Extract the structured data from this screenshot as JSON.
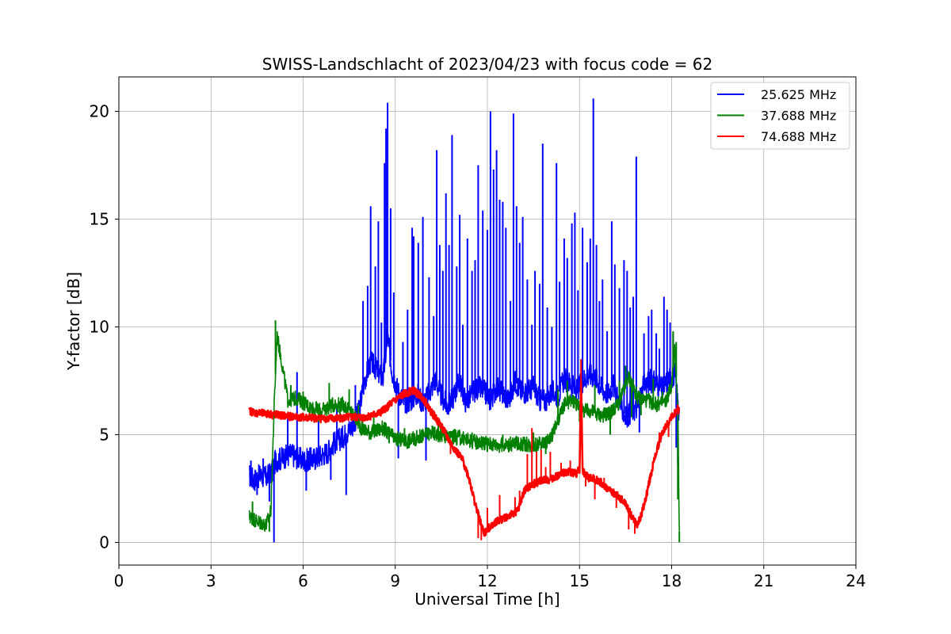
{
  "chart_data": {
    "type": "line",
    "title": "SWISS-Landschlacht of 2023/04/23 with focus code = 62",
    "xlabel": "Universal Time [h]",
    "ylabel": "Y-factor [dB]",
    "xlim": [
      0,
      24
    ],
    "ylim": [
      -1.05,
      21.6
    ],
    "xticks": [
      0,
      3,
      6,
      9,
      12,
      15,
      18,
      21,
      24
    ],
    "yticks": [
      0,
      5,
      10,
      15,
      20
    ],
    "grid": true,
    "legend_position": "top-right",
    "series": [
      {
        "name": "25.625 MHz",
        "color": "#0000ff",
        "x": [
          4.25,
          4.4,
          4.6,
          4.8,
          5.0,
          5.1,
          5.3,
          5.6,
          6.0,
          6.4,
          6.8,
          7.0,
          7.3,
          7.6,
          7.8,
          8.0,
          8.2,
          8.4,
          8.6,
          8.75,
          8.9,
          9.1,
          9.3,
          9.5,
          9.7,
          9.9,
          10.1,
          10.3,
          10.5,
          10.7,
          10.9,
          11.1,
          11.3,
          11.5,
          11.7,
          11.9,
          12.1,
          12.3,
          12.5,
          12.7,
          12.9,
          13.1,
          13.3,
          13.5,
          13.7,
          13.9,
          14.1,
          14.3,
          14.5,
          14.7,
          14.9,
          15.1,
          15.3,
          15.5,
          15.7,
          15.9,
          16.1,
          16.3,
          16.5,
          16.7,
          16.9,
          17.1,
          17.3,
          17.5,
          17.7,
          17.9,
          18.1,
          18.25
        ],
        "y": [
          3.1,
          2.9,
          3.1,
          3.0,
          3.3,
          3.8,
          3.9,
          4.1,
          3.8,
          3.9,
          4.2,
          4.6,
          4.9,
          5.4,
          6.0,
          7.5,
          8.4,
          8.0,
          7.6,
          9.5,
          7.9,
          7.0,
          6.5,
          6.6,
          6.9,
          6.5,
          6.9,
          7.6,
          6.8,
          6.3,
          6.8,
          7.5,
          6.5,
          6.9,
          7.2,
          7.0,
          6.6,
          7.2,
          6.9,
          6.6,
          7.5,
          7.0,
          7.0,
          7.2,
          6.6,
          6.6,
          7.0,
          6.8,
          7.6,
          7.4,
          7.0,
          7.5,
          7.8,
          7.7,
          7.2,
          6.9,
          7.3,
          6.5,
          5.8,
          6.1,
          6.3,
          7.3,
          7.5,
          7.4,
          7.1,
          7.6,
          7.8,
          6.0
        ],
        "spikes": [
          [
            4.3,
            3.8
          ],
          [
            4.5,
            2.2
          ],
          [
            4.7,
            3.9
          ],
          [
            4.9,
            1.9
          ],
          [
            5.05,
            0.0
          ],
          [
            5.5,
            6.0
          ],
          [
            5.8,
            7.9
          ],
          [
            6.1,
            2.4
          ],
          [
            6.5,
            5.6
          ],
          [
            6.9,
            2.9
          ],
          [
            7.1,
            6.3
          ],
          [
            7.4,
            2.2
          ],
          [
            7.7,
            7.3
          ],
          [
            7.95,
            11.2
          ],
          [
            8.1,
            11.9
          ],
          [
            8.2,
            15.6
          ],
          [
            8.35,
            12.8
          ],
          [
            8.45,
            14.9
          ],
          [
            8.55,
            10.2
          ],
          [
            8.65,
            17.6
          ],
          [
            8.7,
            19.2
          ],
          [
            8.75,
            20.4
          ],
          [
            8.85,
            15.5
          ],
          [
            8.95,
            11.6
          ],
          [
            9.1,
            3.9
          ],
          [
            9.25,
            9.3
          ],
          [
            9.4,
            10.8
          ],
          [
            9.55,
            14.6
          ],
          [
            9.6,
            14.2
          ],
          [
            9.75,
            13.9
          ],
          [
            9.9,
            15.1
          ],
          [
            10.0,
            3.8
          ],
          [
            10.1,
            12.3
          ],
          [
            10.25,
            10.5
          ],
          [
            10.35,
            18.2
          ],
          [
            10.45,
            13.8
          ],
          [
            10.55,
            12.6
          ],
          [
            10.65,
            16.2
          ],
          [
            10.75,
            13.8
          ],
          [
            10.85,
            18.9
          ],
          [
            11.0,
            12.8
          ],
          [
            11.1,
            15.2
          ],
          [
            11.2,
            10.1
          ],
          [
            11.35,
            14.1
          ],
          [
            11.5,
            12.6
          ],
          [
            11.6,
            13.1
          ],
          [
            11.7,
            17.5
          ],
          [
            11.85,
            15.4
          ],
          [
            12.0,
            14.5
          ],
          [
            12.1,
            20.0
          ],
          [
            12.2,
            17.3
          ],
          [
            12.3,
            18.2
          ],
          [
            12.4,
            15.9
          ],
          [
            12.5,
            15.8
          ],
          [
            12.6,
            14.6
          ],
          [
            12.75,
            11.2
          ],
          [
            12.85,
            19.9
          ],
          [
            12.95,
            15.6
          ],
          [
            13.05,
            13.9
          ],
          [
            13.15,
            15.1
          ],
          [
            13.3,
            12.2
          ],
          [
            13.45,
            10.1
          ],
          [
            13.55,
            12.6
          ],
          [
            13.7,
            12.0
          ],
          [
            13.8,
            18.5
          ],
          [
            13.95,
            10.9
          ],
          [
            14.1,
            10.0
          ],
          [
            14.25,
            17.6
          ],
          [
            14.35,
            12.1
          ],
          [
            14.5,
            14.1
          ],
          [
            14.6,
            13.2
          ],
          [
            14.75,
            14.8
          ],
          [
            14.85,
            15.3
          ],
          [
            14.95,
            11.7
          ],
          [
            15.1,
            14.6
          ],
          [
            15.25,
            13.0
          ],
          [
            15.35,
            14.1
          ],
          [
            15.45,
            20.6
          ],
          [
            15.55,
            13.8
          ],
          [
            15.65,
            11.2
          ],
          [
            15.75,
            12.2
          ],
          [
            15.9,
            9.8
          ],
          [
            16.05,
            14.9
          ],
          [
            16.15,
            12.9
          ],
          [
            16.3,
            11.8
          ],
          [
            16.45,
            13.1
          ],
          [
            16.55,
            12.6
          ],
          [
            16.65,
            10.9
          ],
          [
            16.75,
            11.4
          ],
          [
            16.85,
            17.9
          ],
          [
            16.95,
            5.1
          ],
          [
            17.1,
            9.7
          ],
          [
            17.25,
            10.5
          ],
          [
            17.35,
            10.8
          ],
          [
            17.5,
            9.7
          ],
          [
            17.6,
            9.0
          ],
          [
            17.75,
            11.4
          ],
          [
            17.85,
            10.8
          ],
          [
            17.95,
            10.2
          ],
          [
            18.05,
            9.7
          ],
          [
            18.15,
            4.4
          ],
          [
            18.2,
            3.6
          ]
        ]
      },
      {
        "name": "37.688 MHz",
        "color": "#008000",
        "x": [
          4.25,
          4.5,
          4.8,
          4.95,
          5.05,
          5.15,
          5.3,
          5.5,
          5.8,
          6.2,
          6.6,
          7.0,
          7.3,
          7.6,
          7.9,
          8.2,
          8.6,
          9.0,
          9.4,
          9.8,
          10.2,
          10.6,
          11.0,
          11.5,
          12.0,
          12.5,
          13.0,
          13.5,
          14.0,
          14.3,
          14.5,
          14.8,
          15.1,
          15.4,
          15.7,
          16.0,
          16.3,
          16.6,
          16.9,
          17.2,
          17.5,
          17.8,
          18.0,
          18.1,
          18.2,
          18.25
        ],
        "y": [
          1.2,
          1.0,
          0.8,
          1.5,
          6.0,
          9.6,
          8.4,
          6.6,
          6.7,
          6.3,
          6.1,
          6.4,
          6.4,
          6.0,
          5.3,
          5.1,
          5.3,
          4.8,
          4.7,
          4.9,
          5.1,
          4.9,
          4.9,
          4.7,
          4.6,
          4.5,
          4.6,
          4.5,
          4.7,
          5.6,
          6.4,
          6.6,
          6.1,
          6.1,
          5.9,
          6.0,
          6.5,
          7.7,
          6.7,
          6.6,
          6.4,
          6.5,
          7.3,
          8.9,
          6.5,
          0.5
        ],
        "spikes": [
          [
            4.35,
            1.9
          ],
          [
            4.6,
            0.6
          ],
          [
            4.9,
            0.5
          ],
          [
            5.1,
            10.3
          ],
          [
            5.2,
            9.4
          ],
          [
            5.6,
            7.3
          ],
          [
            6.0,
            7.0
          ],
          [
            6.5,
            5.6
          ],
          [
            6.85,
            7.4
          ],
          [
            7.2,
            5.7
          ],
          [
            7.5,
            7.1
          ],
          [
            7.8,
            6.4
          ],
          [
            8.3,
            5.8
          ],
          [
            8.8,
            4.6
          ],
          [
            9.3,
            5.3
          ],
          [
            9.9,
            4.7
          ],
          [
            10.4,
            5.5
          ],
          [
            11.0,
            4.5
          ],
          [
            11.5,
            5.1
          ],
          [
            12.0,
            4.2
          ],
          [
            12.5,
            5.0
          ],
          [
            13.0,
            4.3
          ],
          [
            13.5,
            5.1
          ],
          [
            13.9,
            4.1
          ],
          [
            14.3,
            7.1
          ],
          [
            14.6,
            7.5
          ],
          [
            15.0,
            5.6
          ],
          [
            15.5,
            7.3
          ],
          [
            16.0,
            5.0
          ],
          [
            16.3,
            7.5
          ],
          [
            16.5,
            8.2
          ],
          [
            16.7,
            5.8
          ],
          [
            17.0,
            5.9
          ],
          [
            17.4,
            7.6
          ],
          [
            17.7,
            7.0
          ],
          [
            18.05,
            9.8
          ],
          [
            18.15,
            9.3
          ],
          [
            18.2,
            2.0
          ],
          [
            18.25,
            0.0
          ]
        ]
      },
      {
        "name": "74.688 MHz",
        "color": "#ff0000",
        "x": [
          4.25,
          4.5,
          5.0,
          5.5,
          6.0,
          6.5,
          7.0,
          7.5,
          8.0,
          8.5,
          9.0,
          9.3,
          9.6,
          9.9,
          10.2,
          10.5,
          10.8,
          11.0,
          11.2,
          11.4,
          11.6,
          11.8,
          11.9,
          12.0,
          12.2,
          12.5,
          12.8,
          13.0,
          13.2,
          13.5,
          13.8,
          14.0,
          14.3,
          14.6,
          14.9,
          15.0,
          15.05,
          15.1,
          15.3,
          15.6,
          15.9,
          16.2,
          16.5,
          16.7,
          16.9,
          17.1,
          17.3,
          17.5,
          17.7,
          17.9,
          18.1,
          18.25
        ],
        "y": [
          6.1,
          6.0,
          5.95,
          5.85,
          5.8,
          5.75,
          5.75,
          5.8,
          5.8,
          6.0,
          6.6,
          6.9,
          7.05,
          6.7,
          6.0,
          5.4,
          4.6,
          4.2,
          3.8,
          3.0,
          1.8,
          0.8,
          0.4,
          0.6,
          0.9,
          1.1,
          1.3,
          1.5,
          2.4,
          2.7,
          2.9,
          2.9,
          3.1,
          3.3,
          3.2,
          3.4,
          7.5,
          3.3,
          3.0,
          2.9,
          2.5,
          2.2,
          1.8,
          1.2,
          0.8,
          1.7,
          3.0,
          4.2,
          5.1,
          5.6,
          6.0,
          6.2
        ],
        "spikes": [
          [
            4.3,
            6.2
          ],
          [
            5.0,
            5.7
          ],
          [
            6.2,
            6.0
          ],
          [
            7.4,
            6.0
          ],
          [
            8.6,
            6.3
          ],
          [
            9.5,
            7.2
          ],
          [
            10.4,
            5.8
          ],
          [
            10.8,
            4.1
          ],
          [
            11.5,
            2.6
          ],
          [
            11.7,
            0.2
          ],
          [
            11.8,
            0.1
          ],
          [
            12.0,
            1.6
          ],
          [
            12.4,
            2.2
          ],
          [
            12.9,
            2.1
          ],
          [
            13.05,
            2.4
          ],
          [
            13.3,
            4.1
          ],
          [
            13.45,
            5.3
          ],
          [
            13.6,
            4.2
          ],
          [
            13.75,
            4.3
          ],
          [
            13.9,
            3.5
          ],
          [
            14.05,
            4.2
          ],
          [
            14.4,
            3.7
          ],
          [
            14.7,
            3.8
          ],
          [
            15.05,
            8.5
          ],
          [
            15.2,
            2.6
          ],
          [
            15.5,
            2.0
          ],
          [
            15.8,
            3.0
          ],
          [
            16.2,
            1.6
          ],
          [
            16.6,
            0.6
          ],
          [
            16.8,
            0.4
          ],
          [
            17.0,
            1.1
          ],
          [
            17.6,
            5.1
          ],
          [
            17.9,
            4.9
          ],
          [
            18.2,
            6.4
          ]
        ]
      }
    ]
  }
}
